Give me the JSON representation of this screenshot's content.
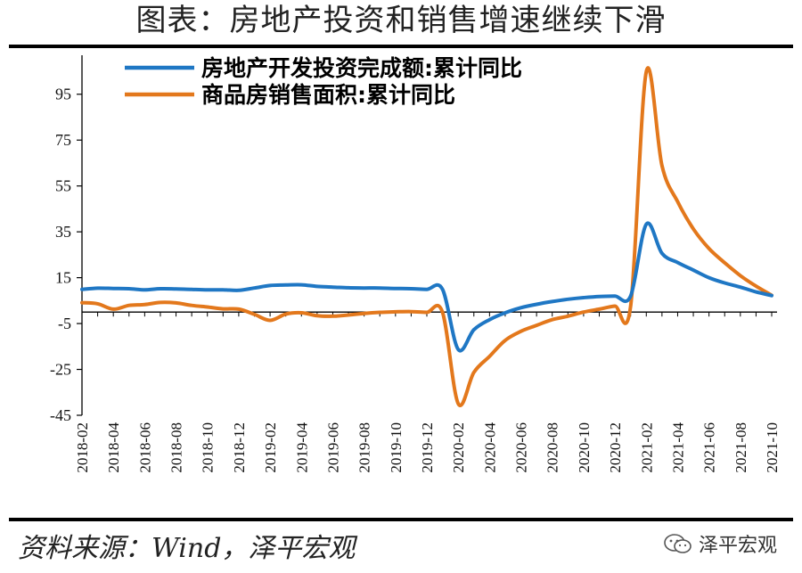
{
  "header": {
    "title": "图表：房地产投资和销售增速继续下滑"
  },
  "footer": {
    "source": "资料来源：Wind，泽平宏观",
    "watermark": "泽平宏观"
  },
  "chart_data": {
    "type": "line",
    "title": "图表：房地产投资和销售增速继续下滑",
    "xlabel": "",
    "ylabel": "",
    "ylim": [
      -45,
      112
    ],
    "y_ticks": [
      95,
      75,
      55,
      35,
      15,
      -5,
      -25,
      -45
    ],
    "x_ticks": [
      "2018-02",
      "2018-04",
      "2018-06",
      "2018-08",
      "2018-10",
      "2018-12",
      "2019-02",
      "2019-04",
      "2019-06",
      "2019-08",
      "2019-10",
      "2019-12",
      "2020-02",
      "2020-04",
      "2020-06",
      "2020-08",
      "2020-10",
      "2020-12",
      "2021-02",
      "2021-04",
      "2021-06",
      "2021-08",
      "2021-10"
    ],
    "legend_position": "top",
    "grid": false,
    "x": [
      "2018-02",
      "2018-03",
      "2018-04",
      "2018-05",
      "2018-06",
      "2018-07",
      "2018-08",
      "2018-09",
      "2018-10",
      "2018-11",
      "2018-12",
      "2019-01",
      "2019-02",
      "2019-03",
      "2019-04",
      "2019-05",
      "2019-06",
      "2019-07",
      "2019-08",
      "2019-09",
      "2019-10",
      "2019-11",
      "2019-12",
      "2020-01",
      "2020-02",
      "2020-03",
      "2020-04",
      "2020-05",
      "2020-06",
      "2020-07",
      "2020-08",
      "2020-09",
      "2020-10",
      "2020-11",
      "2020-12",
      "2021-01",
      "2021-02",
      "2021-03",
      "2021-04",
      "2021-05",
      "2021-06",
      "2021-07",
      "2021-08",
      "2021-09",
      "2021-10"
    ],
    "series": [
      {
        "name": "房地产开发投资完成额:累计同比",
        "color": "#1f77c4",
        "values": [
          9.9,
          10.4,
          10.3,
          10.2,
          9.7,
          10.2,
          10.1,
          9.9,
          9.7,
          9.7,
          9.5,
          10.5,
          11.6,
          11.8,
          11.9,
          11.2,
          10.9,
          10.6,
          10.5,
          10.5,
          10.3,
          10.2,
          9.9,
          9.9,
          -16.3,
          -7.7,
          -3.3,
          -0.3,
          1.9,
          3.4,
          4.6,
          5.6,
          6.3,
          6.8,
          7.0,
          7.0,
          38.3,
          25.6,
          21.6,
          18.3,
          15.0,
          12.7,
          10.9,
          8.8,
          7.2
        ]
      },
      {
        "name": "商品房销售面积:累计同比",
        "color": "#e3781c",
        "values": [
          4.1,
          3.6,
          1.3,
          2.9,
          3.3,
          4.2,
          4.0,
          2.9,
          2.2,
          1.4,
          1.3,
          -1.0,
          -3.6,
          -0.9,
          -0.3,
          -1.6,
          -1.8,
          -1.3,
          -0.6,
          -0.1,
          0.1,
          0.2,
          -0.1,
          -0.1,
          -39.9,
          -26.3,
          -19.3,
          -12.3,
          -8.4,
          -5.8,
          -3.3,
          -1.8,
          0.0,
          1.3,
          2.6,
          2.6,
          104.9,
          63.8,
          48.1,
          36.3,
          27.7,
          21.5,
          15.9,
          11.3,
          7.3
        ]
      }
    ]
  }
}
